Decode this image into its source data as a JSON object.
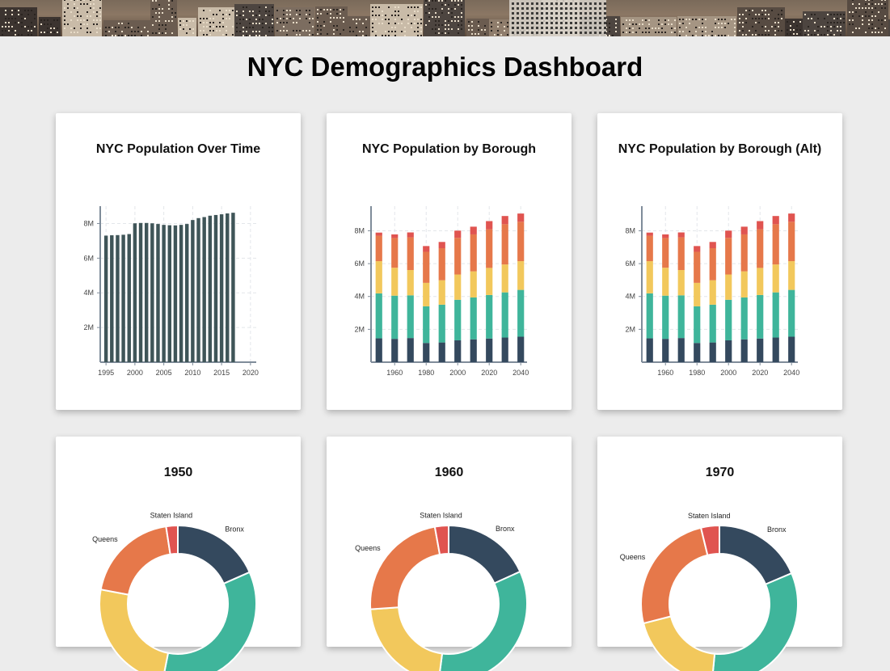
{
  "page": {
    "title": "NYC Demographics Dashboard"
  },
  "colors": {
    "background": "#ececec",
    "card": "#ffffff",
    "bronx": "#34495e",
    "brooklyn": "#3fb59b",
    "manhattan": "#f2c85c",
    "queens": "#e6784a",
    "staten_island": "#e05450",
    "total_bar": "#3f5558",
    "axis": "#7f8c9a",
    "grid": "#e3e6ea"
  },
  "banner": {
    "icon": "city-skyline-photo"
  },
  "charts": [
    {
      "title": "NYC Population Over Time",
      "chart_data": {
        "type": "bar",
        "x": [
          1995,
          1996,
          1997,
          1998,
          1999,
          2000,
          2001,
          2002,
          2003,
          2004,
          2005,
          2006,
          2007,
          2008,
          2009,
          2010,
          2011,
          2012,
          2013,
          2014,
          2015,
          2016,
          2017
        ],
        "values": [
          7300000,
          7320000,
          7330000,
          7350000,
          7390000,
          8010000,
          8030000,
          8030000,
          8010000,
          7970000,
          7920000,
          7900000,
          7890000,
          7920000,
          7970000,
          8200000,
          8310000,
          8370000,
          8450000,
          8490000,
          8530000,
          8580000,
          8620000
        ],
        "x_ticks": [
          "1995",
          "2000",
          "2005",
          "2010",
          "2015",
          "2020"
        ],
        "y_ticks": [
          "2M",
          "4M",
          "6M",
          "8M"
        ],
        "xlim": [
          1994,
          2021
        ],
        "ylim": [
          0,
          9000000
        ],
        "grid": true
      }
    },
    {
      "title": "NYC Population by Borough",
      "chart_data": {
        "type": "bar",
        "stacked": true,
        "categories": [
          1950,
          1960,
          1970,
          1980,
          1990,
          2000,
          2010,
          2020,
          2030,
          2040
        ],
        "series": [
          {
            "key": "bronx",
            "values": [
              1450000,
              1420000,
              1470000,
              1170000,
              1200000,
              1330000,
              1390000,
              1440000,
              1500000,
              1550000
            ]
          },
          {
            "key": "brooklyn",
            "values": [
              2740000,
              2630000,
              2600000,
              2230000,
              2300000,
              2470000,
              2550000,
              2650000,
              2750000,
              2850000
            ]
          },
          {
            "key": "manhattan",
            "values": [
              1960000,
              1700000,
              1540000,
              1430000,
              1490000,
              1540000,
              1590000,
              1650000,
              1700000,
              1750000
            ]
          },
          {
            "key": "queens",
            "values": [
              1550000,
              1810000,
              1990000,
              1890000,
              1950000,
              2230000,
              2250000,
              2350000,
              2450000,
              2400000
            ]
          },
          {
            "key": "staten_island",
            "values": [
              190000,
              220000,
              300000,
              350000,
              380000,
              440000,
              470000,
              500000,
              500000,
              500000
            ]
          }
        ],
        "x_ticks": [
          "1960",
          "1980",
          "2000",
          "2020",
          "2040"
        ],
        "y_ticks": [
          "2M",
          "4M",
          "6M",
          "8M"
        ],
        "ylim": [
          0,
          9500000
        ],
        "grid": true
      }
    },
    {
      "title": "NYC Population by Borough (Alt)",
      "chart_data": {
        "type": "bar",
        "stacked": true,
        "categories": [
          1950,
          1960,
          1970,
          1980,
          1990,
          2000,
          2010,
          2020,
          2030,
          2040
        ],
        "series": [
          {
            "key": "bronx",
            "values": [
              1450000,
              1420000,
              1470000,
              1170000,
              1200000,
              1330000,
              1390000,
              1440000,
              1500000,
              1550000
            ]
          },
          {
            "key": "brooklyn",
            "values": [
              2740000,
              2630000,
              2600000,
              2230000,
              2300000,
              2470000,
              2550000,
              2650000,
              2750000,
              2850000
            ]
          },
          {
            "key": "manhattan",
            "values": [
              1960000,
              1700000,
              1540000,
              1430000,
              1490000,
              1540000,
              1590000,
              1650000,
              1700000,
              1750000
            ]
          },
          {
            "key": "queens",
            "values": [
              1550000,
              1810000,
              1990000,
              1890000,
              1950000,
              2230000,
              2250000,
              2350000,
              2450000,
              2400000
            ]
          },
          {
            "key": "staten_island",
            "values": [
              190000,
              220000,
              300000,
              350000,
              380000,
              440000,
              470000,
              500000,
              500000,
              500000
            ]
          }
        ],
        "x_ticks": [
          "1960",
          "1980",
          "2000",
          "2020",
          "2040"
        ],
        "y_ticks": [
          "2M",
          "4M",
          "6M",
          "8M"
        ],
        "ylim": [
          0,
          9500000
        ],
        "grid": true
      }
    },
    {
      "title": "1950",
      "chart_data": {
        "type": "pie",
        "donut": true,
        "slices": [
          {
            "key": "bronx",
            "label": "Bronx",
            "value": 1450000
          },
          {
            "key": "brooklyn",
            "label": "",
            "value": 2740000
          },
          {
            "key": "manhattan",
            "label": "",
            "value": 1960000
          },
          {
            "key": "queens",
            "label": "Queens",
            "value": 1550000
          },
          {
            "key": "staten_island",
            "label": "Staten Island",
            "value": 190000
          }
        ]
      }
    },
    {
      "title": "1960",
      "chart_data": {
        "type": "pie",
        "donut": true,
        "slices": [
          {
            "key": "bronx",
            "label": "Bronx",
            "value": 1420000
          },
          {
            "key": "brooklyn",
            "label": "",
            "value": 2630000
          },
          {
            "key": "manhattan",
            "label": "",
            "value": 1700000
          },
          {
            "key": "queens",
            "label": "Queens",
            "value": 1810000
          },
          {
            "key": "staten_island",
            "label": "Staten Island",
            "value": 220000
          }
        ]
      }
    },
    {
      "title": "1970",
      "chart_data": {
        "type": "pie",
        "donut": true,
        "slices": [
          {
            "key": "bronx",
            "label": "Bronx",
            "value": 1470000
          },
          {
            "key": "brooklyn",
            "label": "",
            "value": 2600000
          },
          {
            "key": "manhattan",
            "label": "",
            "value": 1540000
          },
          {
            "key": "queens",
            "label": "Queens",
            "value": 1990000
          },
          {
            "key": "staten_island",
            "label": "Staten Island",
            "value": 300000
          }
        ]
      }
    }
  ]
}
